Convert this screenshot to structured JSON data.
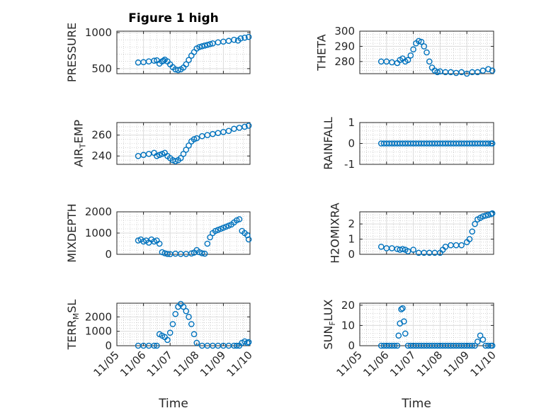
{
  "figure": {
    "title": "Figure 1 high",
    "xlabel": "Time"
  },
  "colors": {
    "marker": "#0072BD",
    "axis": "#262626",
    "grid": "#dcdcdc",
    "minor_grid": "#b8b8b8"
  },
  "chart_data": [
    {
      "type": "scatter",
      "title": "Figure 1 high",
      "ylabel": "PRESSURE",
      "xlim": [
        0,
        5
      ],
      "ylim": [
        430,
        1020
      ],
      "yticks": [
        500,
        1000
      ],
      "yticklabels": [
        "500",
        "1000"
      ],
      "xticks": [
        0,
        1,
        2,
        3,
        4,
        5
      ],
      "xticklabels": [],
      "x": [
        0.8,
        1.0,
        1.2,
        1.4,
        1.5,
        1.6,
        1.7,
        1.75,
        1.8,
        1.9,
        2.0,
        2.1,
        2.2,
        2.3,
        2.4,
        2.5,
        2.6,
        2.7,
        2.8,
        2.9,
        3.0,
        3.1,
        3.2,
        3.3,
        3.4,
        3.5,
        3.6,
        3.8,
        4.0,
        4.2,
        4.4,
        4.55,
        4.65,
        4.8,
        4.95
      ],
      "y": [
        585,
        590,
        600,
        610,
        615,
        570,
        600,
        610,
        625,
        600,
        560,
        520,
        490,
        480,
        490,
        515,
        560,
        620,
        680,
        730,
        780,
        800,
        810,
        820,
        830,
        840,
        850,
        865,
        875,
        885,
        900,
        890,
        920,
        930,
        940
      ]
    },
    {
      "type": "scatter",
      "ylabel": "THETA",
      "xlim": [
        0,
        5
      ],
      "ylim": [
        272,
        300
      ],
      "yticks": [
        280,
        290,
        300
      ],
      "yticklabels": [
        "280",
        "290",
        "300"
      ],
      "xticks": [
        0,
        1,
        2,
        3,
        4,
        5
      ],
      "xticklabels": [],
      "x": [
        0.8,
        1.0,
        1.2,
        1.4,
        1.5,
        1.6,
        1.7,
        1.8,
        1.9,
        2.0,
        2.1,
        2.2,
        2.3,
        2.4,
        2.5,
        2.6,
        2.7,
        2.8,
        2.9,
        3.0,
        3.2,
        3.4,
        3.6,
        3.8,
        4.0,
        4.2,
        4.4,
        4.6,
        4.8,
        4.95
      ],
      "y": [
        280,
        280,
        279.5,
        279,
        281,
        282,
        280,
        281,
        284,
        288,
        292,
        293.5,
        293,
        290,
        286,
        280,
        276,
        274,
        273,
        273.5,
        273,
        273,
        272.5,
        273,
        272,
        273,
        273,
        274,
        275,
        274
      ]
    },
    {
      "type": "scatter",
      "ylabel": "AIR_TEMP",
      "xlim": [
        0,
        5
      ],
      "ylim": [
        232,
        272
      ],
      "yticks": [
        240,
        260
      ],
      "yticklabels": [
        "240",
        "260"
      ],
      "xticks": [
        0,
        1,
        2,
        3,
        4,
        5
      ],
      "xticklabels": [],
      "x": [
        0.8,
        1.0,
        1.2,
        1.4,
        1.5,
        1.6,
        1.7,
        1.8,
        1.9,
        2.0,
        2.1,
        2.2,
        2.3,
        2.4,
        2.5,
        2.6,
        2.7,
        2.8,
        2.9,
        3.0,
        3.2,
        3.4,
        3.6,
        3.8,
        4.0,
        4.2,
        4.4,
        4.6,
        4.8,
        4.95
      ],
      "y": [
        240,
        241,
        242,
        243,
        240,
        241,
        242,
        243,
        240,
        238,
        236,
        235,
        236,
        238,
        242,
        246,
        250,
        254,
        256,
        257,
        259,
        260,
        261,
        262,
        263,
        264,
        266,
        267,
        268,
        269
      ]
    },
    {
      "type": "scatter",
      "ylabel": "RAINFALL",
      "xlim": [
        0,
        5
      ],
      "ylim": [
        -1,
        1
      ],
      "yticks": [
        -1,
        0,
        1
      ],
      "yticklabels": [
        "-1",
        "0",
        "1"
      ],
      "xticks": [
        0,
        1,
        2,
        3,
        4,
        5
      ],
      "xticklabels": [],
      "x": [
        0.8,
        0.9,
        1.0,
        1.1,
        1.2,
        1.3,
        1.4,
        1.5,
        1.6,
        1.7,
        1.8,
        1.9,
        2.0,
        2.1,
        2.2,
        2.3,
        2.4,
        2.5,
        2.6,
        2.7,
        2.8,
        2.9,
        3.0,
        3.1,
        3.2,
        3.3,
        3.4,
        3.5,
        3.6,
        3.7,
        3.8,
        3.9,
        4.0,
        4.1,
        4.2,
        4.3,
        4.4,
        4.5,
        4.6,
        4.7,
        4.8,
        4.9,
        4.95
      ],
      "y": [
        0,
        0,
        0,
        0,
        0,
        0,
        0,
        0,
        0,
        0,
        0,
        0,
        0,
        0,
        0,
        0,
        0,
        0,
        0,
        0,
        0,
        0,
        0,
        0,
        0,
        0,
        0,
        0,
        0,
        0,
        0,
        0,
        0,
        0,
        0,
        0,
        0,
        0,
        0,
        0,
        0,
        0,
        0
      ]
    },
    {
      "type": "scatter",
      "ylabel": "MIXDEPTH",
      "xlim": [
        0,
        5
      ],
      "ylim": [
        0,
        2000
      ],
      "yticks": [
        0,
        1000,
        2000
      ],
      "yticklabels": [
        "0",
        "1000",
        "2000"
      ],
      "xticks": [
        0,
        1,
        2,
        3,
        4,
        5
      ],
      "xticklabels": [],
      "x": [
        0.8,
        0.9,
        1.0,
        1.1,
        1.2,
        1.3,
        1.4,
        1.5,
        1.6,
        1.7,
        1.8,
        1.9,
        2.0,
        2.2,
        2.4,
        2.6,
        2.8,
        2.9,
        3.0,
        3.1,
        3.2,
        3.3,
        3.4,
        3.5,
        3.6,
        3.7,
        3.8,
        3.9,
        4.0,
        4.1,
        4.2,
        4.3,
        4.4,
        4.5,
        4.6,
        4.7,
        4.8,
        4.9,
        4.95
      ],
      "y": [
        650,
        700,
        600,
        650,
        550,
        700,
        600,
        650,
        500,
        100,
        50,
        20,
        10,
        30,
        20,
        20,
        40,
        80,
        200,
        100,
        50,
        30,
        500,
        800,
        1000,
        1100,
        1150,
        1200,
        1250,
        1300,
        1350,
        1400,
        1500,
        1600,
        1650,
        1100,
        1000,
        900,
        700
      ]
    },
    {
      "type": "scatter",
      "ylabel": "H2OMIXRA",
      "xlim": [
        0,
        5
      ],
      "ylim": [
        0,
        2.8
      ],
      "yticks": [
        0,
        1,
        2
      ],
      "yticklabels": [
        "0",
        "1",
        "2"
      ],
      "xticks": [
        0,
        1,
        2,
        3,
        4,
        5
      ],
      "xticklabels": [],
      "x": [
        0.8,
        1.0,
        1.2,
        1.4,
        1.5,
        1.6,
        1.7,
        1.8,
        2.0,
        2.2,
        2.4,
        2.6,
        2.8,
        3.0,
        3.1,
        3.2,
        3.4,
        3.6,
        3.8,
        4.0,
        4.1,
        4.2,
        4.3,
        4.4,
        4.5,
        4.6,
        4.7,
        4.8,
        4.9,
        4.95
      ],
      "y": [
        0.5,
        0.4,
        0.4,
        0.35,
        0.3,
        0.35,
        0.3,
        0.2,
        0.3,
        0.1,
        0.1,
        0.1,
        0.1,
        0.1,
        0.3,
        0.5,
        0.6,
        0.6,
        0.6,
        0.8,
        1.0,
        1.5,
        2.0,
        2.3,
        2.4,
        2.5,
        2.55,
        2.6,
        2.65,
        2.7
      ]
    },
    {
      "type": "scatter",
      "ylabel": "TERR_MSL",
      "xlim": [
        0,
        5
      ],
      "ylim": [
        0,
        2950
      ],
      "yticks": [
        0,
        1000,
        2000
      ],
      "yticklabels": [
        "0",
        "1000",
        "2000"
      ],
      "xticks": [
        0,
        1,
        2,
        3,
        4,
        5
      ],
      "xticklabels": [
        "11/05",
        "11/06",
        "11/07",
        "11/08",
        "11/09",
        "11/10"
      ],
      "x": [
        0.8,
        1.0,
        1.2,
        1.4,
        1.5,
        1.6,
        1.7,
        1.8,
        1.9,
        2.0,
        2.1,
        2.2,
        2.3,
        2.4,
        2.5,
        2.6,
        2.7,
        2.8,
        2.9,
        3.0,
        3.2,
        3.4,
        3.6,
        3.8,
        4.0,
        4.2,
        4.4,
        4.5,
        4.6,
        4.7,
        4.8,
        4.9,
        4.95
      ],
      "y": [
        0,
        0,
        0,
        0,
        0,
        800,
        700,
        600,
        400,
        900,
        1500,
        2200,
        2700,
        2900,
        2700,
        2400,
        2000,
        1500,
        800,
        200,
        0,
        0,
        0,
        0,
        0,
        0,
        0,
        0,
        0,
        200,
        300,
        200,
        250
      ]
    },
    {
      "type": "scatter",
      "ylabel": "SUN_FLUX",
      "xlim": [
        0,
        5
      ],
      "ylim": [
        0,
        21
      ],
      "yticks": [
        0,
        10,
        20
      ],
      "yticklabels": [
        "0",
        "10",
        "20"
      ],
      "xticks": [
        0,
        1,
        2,
        3,
        4,
        5
      ],
      "xticklabels": [
        "11/05",
        "11/06",
        "11/07",
        "11/08",
        "11/09",
        "11/10"
      ],
      "x": [
        0.8,
        0.9,
        1.0,
        1.1,
        1.2,
        1.3,
        1.4,
        1.45,
        1.5,
        1.55,
        1.6,
        1.65,
        1.7,
        1.8,
        1.9,
        2.0,
        2.1,
        2.2,
        2.3,
        2.4,
        2.5,
        2.6,
        2.7,
        2.8,
        2.9,
        3.0,
        3.1,
        3.2,
        3.3,
        3.4,
        3.5,
        3.6,
        3.7,
        3.8,
        3.9,
        4.0,
        4.1,
        4.2,
        4.3,
        4.4,
        4.5,
        4.6,
        4.7,
        4.8,
        4.9,
        4.95
      ],
      "y": [
        0,
        0,
        0,
        0,
        0,
        0,
        0,
        5,
        11,
        18,
        18.5,
        12,
        6,
        0,
        0,
        0,
        0,
        0,
        0,
        0,
        0,
        0,
        0,
        0,
        0,
        0,
        0,
        0,
        0,
        0,
        0,
        0,
        0,
        0,
        0,
        0,
        0,
        0,
        0,
        2,
        5,
        3,
        0,
        0,
        0,
        0
      ]
    }
  ]
}
